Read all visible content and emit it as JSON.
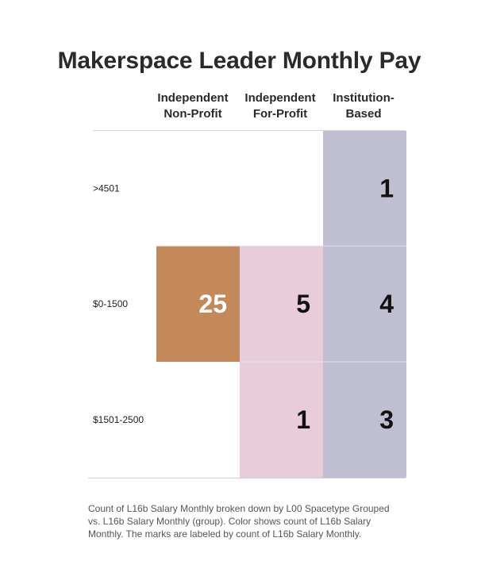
{
  "title": "Makerspace Leader Monthly Pay",
  "columns": [
    {
      "line1": "Independent",
      "line2": "Non-Profit"
    },
    {
      "line1": "Independent",
      "line2": "For-Profit"
    },
    {
      "line1": "Institution-",
      "line2": "Based"
    }
  ],
  "footnote": [
    "Count of L16b Salary Monthly broken down by L00 Spacetype Grouped",
    "vs. L16b Salary Monthly (group).  Color shows count of L16b Salary",
    "Monthly.  The marks are labeled by count of L16b Salary Monthly."
  ],
  "chart_data": {
    "type": "heatmap",
    "title": "Makerspace Leader Monthly Pay",
    "x_categories": [
      "Independent Non-Profit",
      "Independent For-Profit",
      "Institution-Based"
    ],
    "y_categories": [
      ">4501",
      "$0-1500",
      "$1501-2500"
    ],
    "cells": [
      {
        "row": ">4501",
        "col": "Institution-Based",
        "value": 1,
        "color": "#bfbfd1",
        "label_color": "#111111"
      },
      {
        "row": "$0-1500",
        "col": "Independent Non-Profit",
        "value": 25,
        "color": "#c4895b",
        "label_color": "#ffffff"
      },
      {
        "row": "$0-1500",
        "col": "Independent For-Profit",
        "value": 5,
        "color": "#e8ccda",
        "label_color": "#111111"
      },
      {
        "row": "$0-1500",
        "col": "Institution-Based",
        "value": 4,
        "color": "#bfbfd1",
        "label_color": "#111111"
      },
      {
        "row": "$1501-2500",
        "col": "Independent For-Profit",
        "value": 1,
        "color": "#e8ccda",
        "label_color": "#111111"
      },
      {
        "row": "$1501-2500",
        "col": "Institution-Based",
        "value": 3,
        "color": "#bfbfd1",
        "label_color": "#111111"
      }
    ],
    "legend": "none",
    "grid": true
  }
}
